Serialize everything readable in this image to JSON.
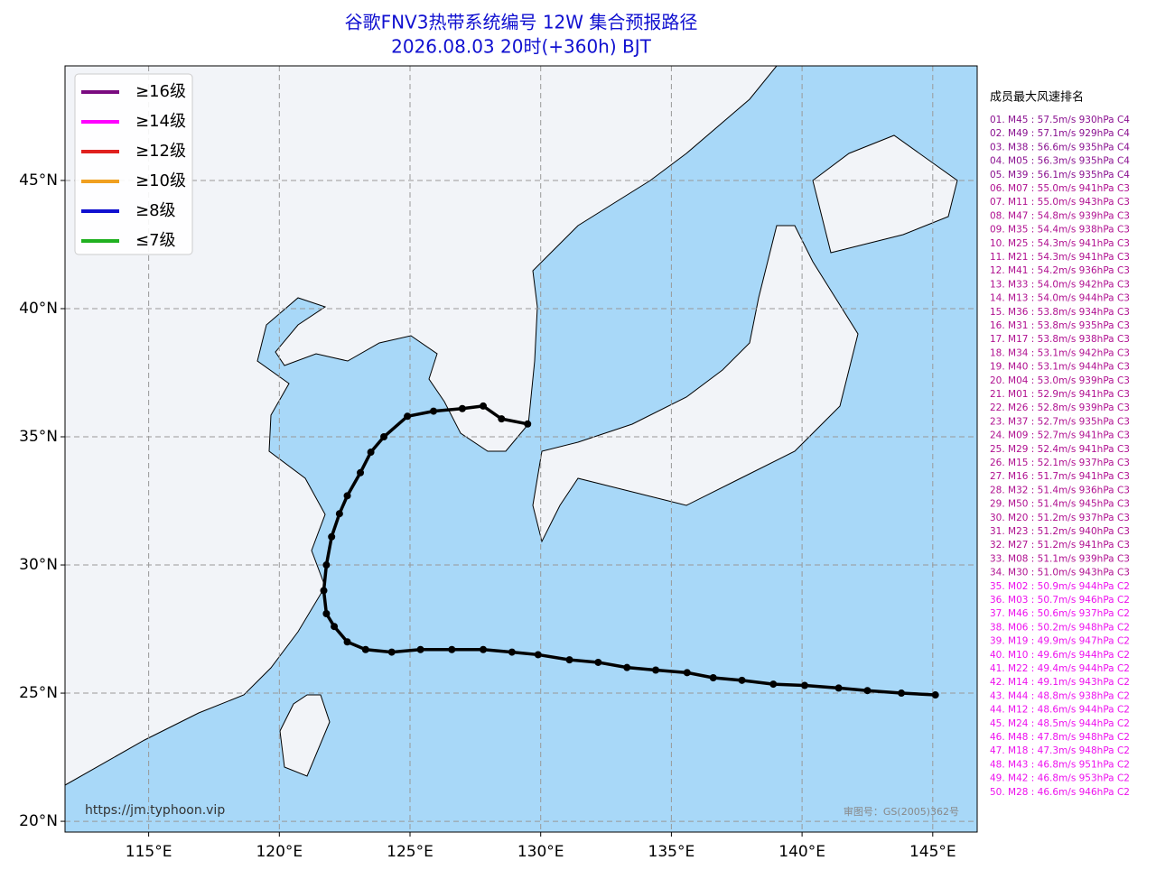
{
  "chart_data": {
    "type": "map",
    "title": [
      "谷歌FNV3热带系统编号 12W 集合预报路径",
      "2026.08.03 20时(+360h) BJT"
    ],
    "xlim": [
      111.8,
      146.7
    ],
    "ylim": [
      19.58,
      49.47
    ],
    "xticks": [
      {
        "value": 115,
        "label": "115°E"
      },
      {
        "value": 120,
        "label": "120°E"
      },
      {
        "value": 125,
        "label": "125°E"
      },
      {
        "value": 130,
        "label": "130°E"
      },
      {
        "value": 135,
        "label": "135°E"
      },
      {
        "value": 140,
        "label": "140°E"
      },
      {
        "value": 145,
        "label": "145°E"
      }
    ],
    "yticks": [
      {
        "value": 20,
        "label": "20°N"
      },
      {
        "value": 25,
        "label": "25°N"
      },
      {
        "value": 30,
        "label": "30°N"
      },
      {
        "value": 35,
        "label": "35°N"
      },
      {
        "value": 40,
        "label": "40°N"
      },
      {
        "value": 45,
        "label": "45°N"
      }
    ],
    "grid": true,
    "legend": [
      {
        "name": "≥16级",
        "color": "#7a0a80"
      },
      {
        "name": "≥14级",
        "color": "#ff00ff"
      },
      {
        "name": "≥12级",
        "color": "#e0201e"
      },
      {
        "name": "≥10级",
        "color": "#f0a020"
      },
      {
        "name": "≥8级",
        "color": "#1010d0"
      },
      {
        "name": "≤7级",
        "color": "#20b020"
      }
    ],
    "track": {
      "color": "#000000",
      "lon": [
        145.1,
        143.8,
        142.5,
        141.4,
        140.1,
        138.9,
        137.7,
        136.6,
        135.6,
        134.4,
        133.3,
        132.2,
        131.1,
        129.9,
        128.9,
        127.8,
        126.6,
        125.4,
        124.3,
        123.3,
        122.6,
        122.1,
        121.8,
        121.7,
        121.8,
        122.0,
        122.3,
        122.6,
        123.1,
        123.5,
        124.0,
        124.9,
        125.9,
        127.0,
        127.8,
        128.5,
        129.5
      ],
      "lat": [
        24.93,
        25.0,
        25.1,
        25.2,
        25.3,
        25.35,
        25.5,
        25.6,
        25.8,
        25.9,
        26.0,
        26.2,
        26.3,
        26.5,
        26.6,
        26.7,
        26.7,
        26.7,
        26.6,
        26.7,
        27.0,
        27.6,
        28.1,
        29.0,
        30.0,
        31.1,
        32.0,
        32.7,
        33.6,
        34.4,
        35.0,
        35.8,
        36.0,
        36.1,
        36.2,
        35.7,
        35.5
      ]
    },
    "ranking_title": "成员最大风速排名",
    "ranking": [
      {
        "text": "01. M45 : 57.5m/s 930hPa C4",
        "color": "#8a1090"
      },
      {
        "text": "02. M49 : 57.1m/s 929hPa C4",
        "color": "#8a1090"
      },
      {
        "text": "03. M38 : 56.6m/s 935hPa C4",
        "color": "#8a1090"
      },
      {
        "text": "04. M05 : 56.3m/s 935hPa C4",
        "color": "#8a1090"
      },
      {
        "text": "05. M39 : 56.1m/s 935hPa C4",
        "color": "#8a1090"
      },
      {
        "text": "06. M07 : 55.0m/s 941hPa C3",
        "color": "#b01090"
      },
      {
        "text": "07. M11 : 55.0m/s 943hPa C3",
        "color": "#b01090"
      },
      {
        "text": "08. M47 : 54.8m/s 939hPa C3",
        "color": "#b01090"
      },
      {
        "text": "09. M35 : 54.4m/s 938hPa C3",
        "color": "#b01090"
      },
      {
        "text": "10. M25 : 54.3m/s 941hPa C3",
        "color": "#b01090"
      },
      {
        "text": "11. M21 : 54.3m/s 941hPa C3",
        "color": "#b01090"
      },
      {
        "text": "12. M41 : 54.2m/s 936hPa C3",
        "color": "#b01090"
      },
      {
        "text": "13. M33 : 54.0m/s 942hPa C3",
        "color": "#b01090"
      },
      {
        "text": "14. M13 : 54.0m/s 944hPa C3",
        "color": "#b01090"
      },
      {
        "text": "15. M36 : 53.8m/s 934hPa C3",
        "color": "#b01090"
      },
      {
        "text": "16. M31 : 53.8m/s 935hPa C3",
        "color": "#b01090"
      },
      {
        "text": "17. M17 : 53.8m/s 938hPa C3",
        "color": "#b01090"
      },
      {
        "text": "18. M34 : 53.1m/s 942hPa C3",
        "color": "#b01090"
      },
      {
        "text": "19. M40 : 53.1m/s 944hPa C3",
        "color": "#b01090"
      },
      {
        "text": "20. M04 : 53.0m/s 939hPa C3",
        "color": "#b01090"
      },
      {
        "text": "21. M01 : 52.9m/s 941hPa C3",
        "color": "#b01090"
      },
      {
        "text": "22. M26 : 52.8m/s 939hPa C3",
        "color": "#b01090"
      },
      {
        "text": "23. M37 : 52.7m/s 935hPa C3",
        "color": "#b01090"
      },
      {
        "text": "24. M09 : 52.7m/s 941hPa C3",
        "color": "#b01090"
      },
      {
        "text": "25. M29 : 52.4m/s 941hPa C3",
        "color": "#b01090"
      },
      {
        "text": "26. M15 : 52.1m/s 937hPa C3",
        "color": "#b01090"
      },
      {
        "text": "27. M16 : 51.7m/s 941hPa C3",
        "color": "#b01090"
      },
      {
        "text": "28. M32 : 51.4m/s 936hPa C3",
        "color": "#b01090"
      },
      {
        "text": "29. M50 : 51.4m/s 945hPa C3",
        "color": "#b01090"
      },
      {
        "text": "30. M20 : 51.2m/s 937hPa C3",
        "color": "#b01090"
      },
      {
        "text": "31. M23 : 51.2m/s 940hPa C3",
        "color": "#b01090"
      },
      {
        "text": "32. M27 : 51.2m/s 941hPa C3",
        "color": "#b01090"
      },
      {
        "text": "33. M08 : 51.1m/s 939hPa C3",
        "color": "#b01090"
      },
      {
        "text": "34. M30 : 51.0m/s 943hPa C3",
        "color": "#b01090"
      },
      {
        "text": "35. M02 : 50.9m/s 944hPa C2",
        "color": "#ee10ee"
      },
      {
        "text": "36. M03 : 50.7m/s 946hPa C2",
        "color": "#ee10ee"
      },
      {
        "text": "37. M46 : 50.6m/s 937hPa C2",
        "color": "#ee10ee"
      },
      {
        "text": "38. M06 : 50.2m/s 948hPa C2",
        "color": "#ee10ee"
      },
      {
        "text": "39. M19 : 49.9m/s 947hPa C2",
        "color": "#ee10ee"
      },
      {
        "text": "40. M10 : 49.6m/s 944hPa C2",
        "color": "#ee10ee"
      },
      {
        "text": "41. M22 : 49.4m/s 944hPa C2",
        "color": "#ee10ee"
      },
      {
        "text": "42. M14 : 49.1m/s 943hPa C2",
        "color": "#ee10ee"
      },
      {
        "text": "43. M44 : 48.8m/s 938hPa C2",
        "color": "#ee10ee"
      },
      {
        "text": "44. M12 : 48.6m/s 944hPa C2",
        "color": "#ee10ee"
      },
      {
        "text": "45. M24 : 48.5m/s 944hPa C2",
        "color": "#ee10ee"
      },
      {
        "text": "46. M48 : 47.8m/s 948hPa C2",
        "color": "#ee10ee"
      },
      {
        "text": "47. M18 : 47.3m/s 948hPa C2",
        "color": "#ee10ee"
      },
      {
        "text": "48. M43 : 46.8m/s 951hPa C2",
        "color": "#ee10ee"
      },
      {
        "text": "49. M42 : 46.8m/s 953hPa C2",
        "color": "#ee10ee"
      },
      {
        "text": "50. M28 : 46.6m/s 946hPa C2",
        "color": "#ee10ee"
      }
    ],
    "url": "https://jm.typhoon.vip",
    "review_number": "审图号：GS(2005)362号"
  }
}
